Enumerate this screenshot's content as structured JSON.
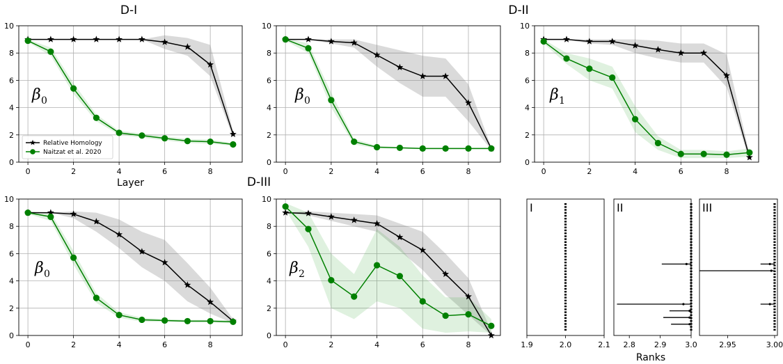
{
  "figure_titles": [
    "D-I",
    "D-II",
    "D-III"
  ],
  "chart_data": [
    {
      "type": "line",
      "group": "D-I",
      "annotation": "β",
      "annotation_sub": "0",
      "xlabel": "Layer",
      "ylabel": "",
      "x": [
        0,
        1,
        2,
        3,
        4,
        5,
        6,
        7,
        8,
        9
      ],
      "xticks": [
        0,
        2,
        4,
        6,
        8
      ],
      "yticks": [
        0,
        2,
        4,
        6,
        8,
        10
      ],
      "xlim": [
        -0.4,
        9.4
      ],
      "ylim": [
        0,
        10
      ],
      "grid": true,
      "legend": "bottom-left",
      "series": [
        {
          "name": "Relative Homology",
          "color": "#000000",
          "marker": "star",
          "values": [
            9,
            9,
            9,
            9,
            9,
            9,
            8.8,
            8.45,
            7.15,
            2.05
          ],
          "band_low": [
            9,
            9,
            9,
            9,
            9,
            9,
            8.3,
            7.8,
            6.3,
            1.8
          ],
          "band_high": [
            9,
            9,
            9,
            9,
            9,
            9,
            9.3,
            9.1,
            8.6,
            2.3
          ]
        },
        {
          "name": "Naitzat et al. 2020",
          "color": "#008000",
          "marker": "circle",
          "values": [
            8.9,
            8.1,
            5.4,
            3.25,
            2.15,
            1.95,
            1.75,
            1.55,
            1.5,
            1.3
          ],
          "band_low": [
            8.8,
            7.8,
            5.0,
            3.0,
            2.0,
            1.8,
            1.6,
            1.4,
            1.35,
            1.2
          ],
          "band_high": [
            9.0,
            8.4,
            5.8,
            3.5,
            2.3,
            2.1,
            1.9,
            1.7,
            1.65,
            1.4
          ]
        }
      ]
    },
    {
      "type": "line",
      "group": "D-II",
      "annotation": "β",
      "annotation_sub": "0",
      "xlabel": "",
      "ylabel": "",
      "x": [
        0,
        1,
        2,
        3,
        4,
        5,
        6,
        7,
        8,
        9
      ],
      "xticks": [
        0,
        2,
        4,
        6,
        8
      ],
      "yticks": [
        0,
        2,
        4,
        6,
        8,
        10
      ],
      "xlim": [
        -0.4,
        9.4
      ],
      "ylim": [
        0,
        10
      ],
      "grid": true,
      "series": [
        {
          "name": "Relative Homology",
          "color": "#000000",
          "marker": "star",
          "values": [
            9,
            9,
            8.85,
            8.75,
            7.85,
            6.95,
            6.3,
            6.3,
            4.35,
            1.0
          ],
          "band_low": [
            9,
            9,
            8.7,
            8.4,
            7.0,
            5.8,
            4.8,
            4.8,
            3.0,
            0.9
          ],
          "band_high": [
            9,
            9,
            9.0,
            9.0,
            8.6,
            8.2,
            7.8,
            7.6,
            5.7,
            1.1
          ]
        },
        {
          "name": "Naitzat et al. 2020",
          "color": "#008000",
          "marker": "circle",
          "values": [
            9.0,
            8.35,
            4.55,
            1.5,
            1.1,
            1.05,
            1.0,
            1.0,
            1.0,
            1.0
          ],
          "band_low": [
            8.9,
            8.0,
            4.0,
            1.3,
            1.0,
            1.0,
            0.95,
            0.95,
            0.95,
            0.95
          ],
          "band_high": [
            9.1,
            8.7,
            5.1,
            1.7,
            1.2,
            1.1,
            1.05,
            1.05,
            1.05,
            1.05
          ]
        }
      ]
    },
    {
      "type": "line",
      "group": "D-II",
      "annotation": "β",
      "annotation_sub": "1",
      "xlabel": "",
      "ylabel": "",
      "x": [
        0,
        1,
        2,
        3,
        4,
        5,
        6,
        7,
        8,
        9
      ],
      "xticks": [
        0,
        2,
        4,
        6,
        8
      ],
      "yticks": [
        0,
        2,
        4,
        6,
        8,
        10
      ],
      "xlim": [
        -0.4,
        9.4
      ],
      "ylim": [
        0,
        10
      ],
      "grid": true,
      "series": [
        {
          "name": "Relative Homology",
          "color": "#000000",
          "marker": "star",
          "values": [
            9,
            9,
            8.85,
            8.85,
            8.55,
            8.25,
            8.0,
            8.0,
            6.35,
            0.35
          ],
          "band_low": [
            9,
            9,
            8.7,
            8.6,
            8.0,
            7.6,
            7.3,
            7.3,
            5.5,
            0.1
          ],
          "band_high": [
            9,
            9,
            9.0,
            9.0,
            9.0,
            8.9,
            8.7,
            8.7,
            7.9,
            0.6
          ]
        },
        {
          "name": "Naitzat et al. 2020",
          "color": "#008000",
          "marker": "circle",
          "values": [
            8.85,
            7.6,
            6.85,
            6.2,
            3.15,
            1.4,
            0.6,
            0.6,
            0.55,
            0.7
          ],
          "band_low": [
            8.7,
            7.2,
            6.0,
            5.4,
            2.2,
            0.9,
            0.3,
            0.3,
            0.3,
            0.4
          ],
          "band_high": [
            9.0,
            8.0,
            7.6,
            7.0,
            4.1,
            1.9,
            0.9,
            0.9,
            0.8,
            1.0
          ]
        }
      ]
    },
    {
      "type": "line",
      "group": "D-III",
      "annotation": "β",
      "annotation_sub": "0",
      "xlabel": "",
      "ylabel": "",
      "x": [
        0,
        1,
        2,
        3,
        4,
        5,
        6,
        7,
        8,
        9
      ],
      "xticks": [
        0,
        2,
        4,
        6,
        8
      ],
      "yticks": [
        0,
        2,
        4,
        6,
        8,
        10
      ],
      "xlim": [
        -0.4,
        9.4
      ],
      "ylim": [
        0,
        10
      ],
      "grid": true,
      "series": [
        {
          "name": "Relative Homology",
          "color": "#000000",
          "marker": "star",
          "values": [
            9,
            9,
            8.9,
            8.35,
            7.4,
            6.15,
            5.35,
            3.7,
            2.45,
            1.05
          ],
          "band_low": [
            9,
            9,
            8.6,
            7.6,
            6.4,
            5.0,
            4.0,
            2.5,
            1.6,
            0.9
          ],
          "band_high": [
            9,
            9,
            9.1,
            9.0,
            8.5,
            7.6,
            7.0,
            5.3,
            3.5,
            1.2
          ]
        },
        {
          "name": "Naitzat et al. 2020",
          "color": "#008000",
          "marker": "circle",
          "values": [
            9.0,
            8.7,
            5.7,
            2.75,
            1.5,
            1.15,
            1.1,
            1.05,
            1.05,
            1.0
          ],
          "band_low": [
            8.9,
            8.4,
            5.2,
            2.4,
            1.3,
            1.0,
            1.0,
            0.95,
            0.95,
            0.9
          ],
          "band_high": [
            9.1,
            9.0,
            6.2,
            3.1,
            1.7,
            1.3,
            1.2,
            1.15,
            1.15,
            1.1
          ]
        }
      ]
    },
    {
      "type": "line",
      "group": "D-III",
      "annotation": "β",
      "annotation_sub": "2",
      "xlabel": "",
      "ylabel": "",
      "x": [
        0,
        1,
        2,
        3,
        4,
        5,
        6,
        7,
        8,
        9
      ],
      "xticks": [
        0,
        2,
        4,
        6,
        8
      ],
      "yticks": [
        0,
        2,
        4,
        6,
        8,
        10
      ],
      "xlim": [
        -0.4,
        9.4
      ],
      "ylim": [
        0,
        10
      ],
      "grid": true,
      "series": [
        {
          "name": "Relative Homology",
          "color": "#000000",
          "marker": "star",
          "values": [
            9,
            8.95,
            8.7,
            8.45,
            8.2,
            7.2,
            6.25,
            4.5,
            2.85,
            0.0
          ],
          "band_low": [
            9,
            8.8,
            8.4,
            8.0,
            7.6,
            6.2,
            4.8,
            3.0,
            1.5,
            0.0
          ],
          "band_high": [
            9,
            9.1,
            9.0,
            8.9,
            8.8,
            8.2,
            7.6,
            6.0,
            4.2,
            0.3
          ]
        },
        {
          "name": "Naitzat et al. 2020",
          "color": "#008000",
          "marker": "circle",
          "values": [
            9.45,
            7.8,
            4.05,
            2.85,
            5.15,
            4.35,
            2.5,
            1.45,
            1.55,
            0.7
          ],
          "band_low": [
            9.2,
            6.5,
            2.0,
            1.2,
            2.5,
            2.0,
            0.5,
            0.2,
            0.3,
            0.2
          ],
          "band_high": [
            9.7,
            9.0,
            6.0,
            4.5,
            7.8,
            6.5,
            4.4,
            2.8,
            2.8,
            1.2
          ]
        }
      ]
    },
    {
      "type": "errorbar",
      "group": "Ranks",
      "label": "I",
      "xlabel": "",
      "xlim": [
        1.9,
        2.1
      ],
      "xticks": [
        "1.9",
        "2.0",
        "2.1"
      ],
      "column_value": 2.0,
      "rows": 20,
      "outliers": []
    },
    {
      "type": "errorbar",
      "group": "Ranks",
      "label": "II",
      "xlabel": "Ranks",
      "xlim": [
        2.75,
        3.0
      ],
      "xticks": [
        "2.8",
        "2.9",
        "3.0"
      ],
      "column_value": 3.0,
      "rows": 20,
      "outliers": [
        {
          "row": 9,
          "center": 2.985,
          "low": 2.905,
          "high": 3.0
        },
        {
          "row": 15,
          "center": 2.975,
          "low": 2.76,
          "high": 3.0
        },
        {
          "row": 16,
          "center": 2.995,
          "low": 2.93,
          "high": 3.0
        },
        {
          "row": 17,
          "center": 2.995,
          "low": 2.91,
          "high": 3.0
        },
        {
          "row": 18,
          "center": 2.995,
          "low": 2.935,
          "high": 3.0
        }
      ]
    },
    {
      "type": "errorbar",
      "group": "Ranks",
      "label": "III",
      "xlabel": "",
      "xlim": [
        2.92,
        3.003
      ],
      "xticks": [
        "2.95",
        "3.00"
      ],
      "column_value": 3.0,
      "rows": 20,
      "outliers": [
        {
          "row": 9,
          "center": 2.995,
          "low": 2.985,
          "high": 3.0
        },
        {
          "row": 10,
          "center": 2.9965,
          "low": 2.92,
          "high": 3.0
        },
        {
          "row": 15,
          "center": 2.995,
          "low": 2.985,
          "high": 3.0
        }
      ]
    }
  ]
}
